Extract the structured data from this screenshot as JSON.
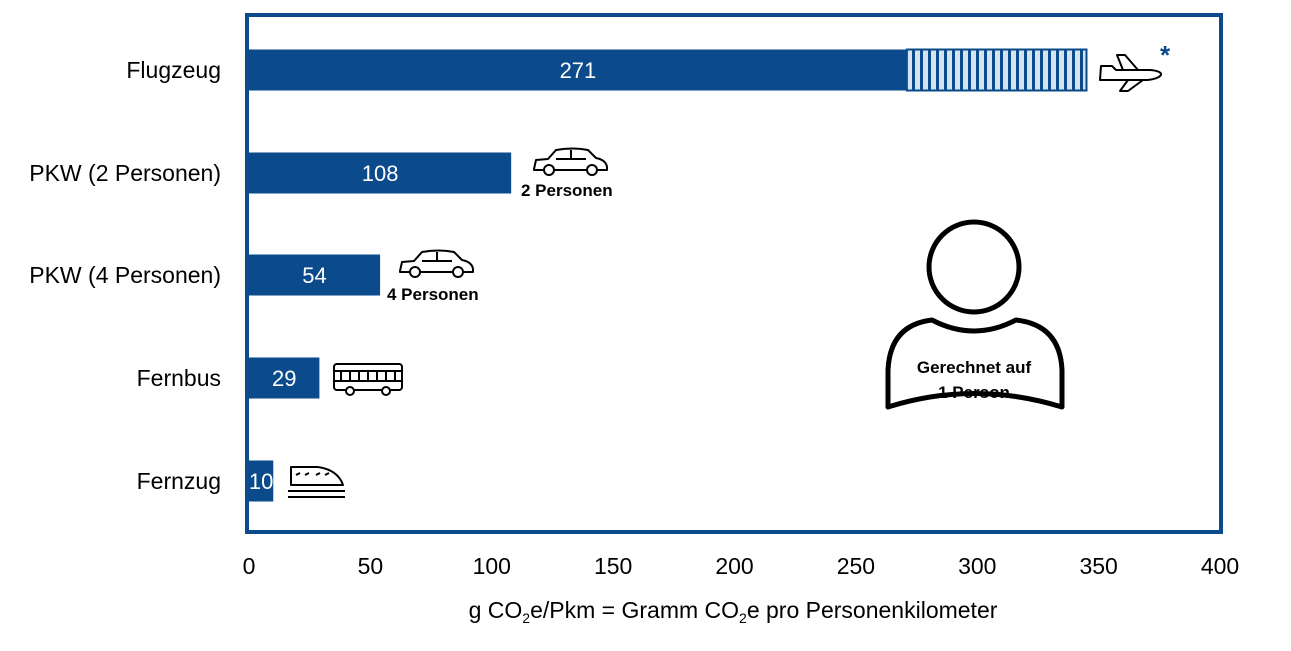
{
  "chart_data": {
    "type": "bar",
    "orientation": "horizontal",
    "categories": [
      "Flugzeug",
      "PKW (2 Personen)",
      "PKW (4 Personen)",
      "Fernbus",
      "Fernzug"
    ],
    "values": [
      271,
      108,
      54,
      29,
      10
    ],
    "value_labels": [
      "271",
      "108",
      "54",
      "29",
      "10"
    ],
    "extension": {
      "category": "Flugzeug",
      "from": 271,
      "to": 345,
      "style": "hatched"
    },
    "xlim": [
      0,
      400
    ],
    "xticks": [
      "0",
      "50",
      "100",
      "150",
      "200",
      "250",
      "300",
      "350",
      "400"
    ],
    "xlabel_parts": [
      "g CO",
      "2",
      "e/Pkm = Gramm CO",
      "2",
      "e pro Personenkilometer"
    ],
    "annotations": {
      "plane_marker": "*",
      "pkw2_note": "2 Personen",
      "pkw4_note": "4 Personen",
      "person_line1": "Gerechnet auf",
      "person_line2": "1 Person"
    },
    "icons": [
      "airplane-icon",
      "car-icon",
      "car-icon",
      "bus-icon",
      "train-icon",
      "person-icon"
    ],
    "colors": {
      "bar": "#0b4a8b",
      "frame": "#0b4a8b",
      "hatch_bg": "#d6e3f1"
    }
  }
}
